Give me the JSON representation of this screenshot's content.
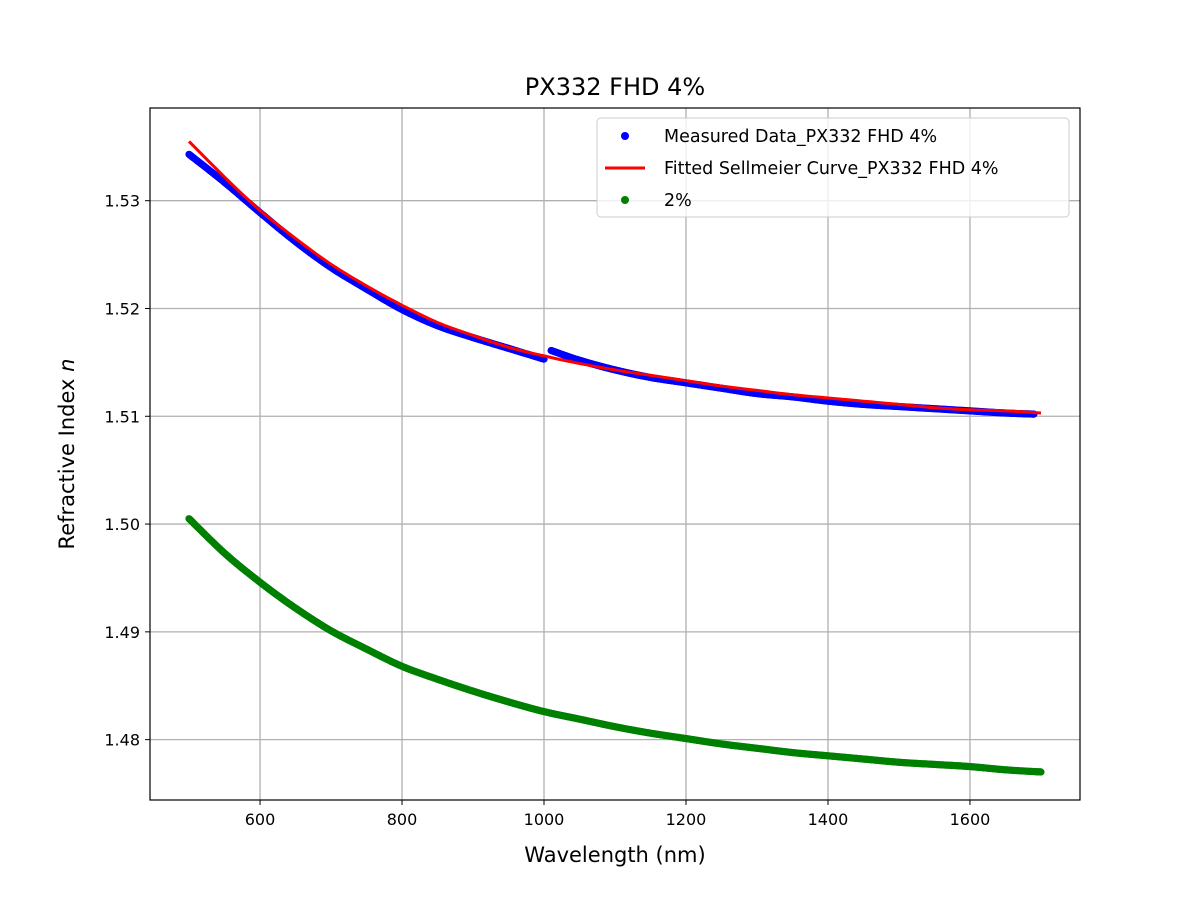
{
  "chart_data": {
    "type": "line",
    "title": "PX332 FHD 4%",
    "xlabel": "Wavelength (nm)",
    "ylabel_prefix": "Refractive Index ",
    "ylabel_var": "n",
    "xlim": [
      445,
      1755
    ],
    "ylim": [
      1.4744,
      1.5386
    ],
    "x_ticks": [
      600,
      800,
      1000,
      1200,
      1400,
      1600
    ],
    "x_tick_labels": [
      "600",
      "800",
      "1000",
      "1200",
      "1400",
      "1600"
    ],
    "y_ticks": [
      1.48,
      1.49,
      1.5,
      1.51,
      1.52,
      1.53
    ],
    "y_tick_labels": [
      "1.48",
      "1.49",
      "1.50",
      "1.51",
      "1.52",
      "1.53"
    ],
    "grid": true,
    "legend_position": "top-right",
    "series": [
      {
        "name": "Measured Data_PX332 FHD 4%",
        "style": "points",
        "color": "#0000ff",
        "x": [
          500,
          550,
          600,
          650,
          700,
          750,
          800,
          850,
          900,
          950,
          1000,
          1010,
          1050,
          1100,
          1150,
          1200,
          1250,
          1300,
          1350,
          1400,
          1450,
          1500,
          1550,
          1600,
          1650,
          1690
        ],
        "y": [
          1.5343,
          1.5317,
          1.5289,
          1.5262,
          1.5238,
          1.5218,
          1.5199,
          1.5184,
          1.5173,
          1.5163,
          1.5153,
          1.5161,
          1.5152,
          1.5143,
          1.5136,
          1.5131,
          1.5126,
          1.5121,
          1.5118,
          1.5114,
          1.5111,
          1.5109,
          1.5107,
          1.5105,
          1.5103,
          1.5102
        ]
      },
      {
        "name": "Fitted Sellmeier Curve_PX332 FHD 4%",
        "style": "line",
        "color": "#ff0000",
        "x": [
          500,
          550,
          600,
          650,
          700,
          750,
          800,
          850,
          900,
          950,
          1000,
          1050,
          1100,
          1150,
          1200,
          1250,
          1300,
          1350,
          1400,
          1450,
          1500,
          1550,
          1600,
          1650,
          1700
        ],
        "y": [
          1.5355,
          1.5322,
          1.5291,
          1.5265,
          1.5241,
          1.5221,
          1.5203,
          1.5187,
          1.5175,
          1.5164,
          1.5156,
          1.5149,
          1.5143,
          1.5138,
          1.5133,
          1.5128,
          1.5124,
          1.512,
          1.5117,
          1.5114,
          1.5111,
          1.5108,
          1.5106,
          1.5105,
          1.5103
        ]
      },
      {
        "name": "2%",
        "style": "points",
        "color": "#008000",
        "x": [
          500,
          550,
          600,
          650,
          700,
          750,
          800,
          850,
          900,
          950,
          1000,
          1050,
          1100,
          1150,
          1200,
          1250,
          1300,
          1350,
          1400,
          1450,
          1500,
          1550,
          1600,
          1650,
          1700
        ],
        "y": [
          1.5005,
          1.4973,
          1.4946,
          1.4922,
          1.4901,
          1.4884,
          1.4868,
          1.4856,
          1.4845,
          1.4835,
          1.4826,
          1.4819,
          1.4812,
          1.4806,
          1.4801,
          1.4796,
          1.4792,
          1.4788,
          1.4785,
          1.4782,
          1.4779,
          1.4777,
          1.4775,
          1.4772,
          1.477
        ]
      }
    ]
  }
}
